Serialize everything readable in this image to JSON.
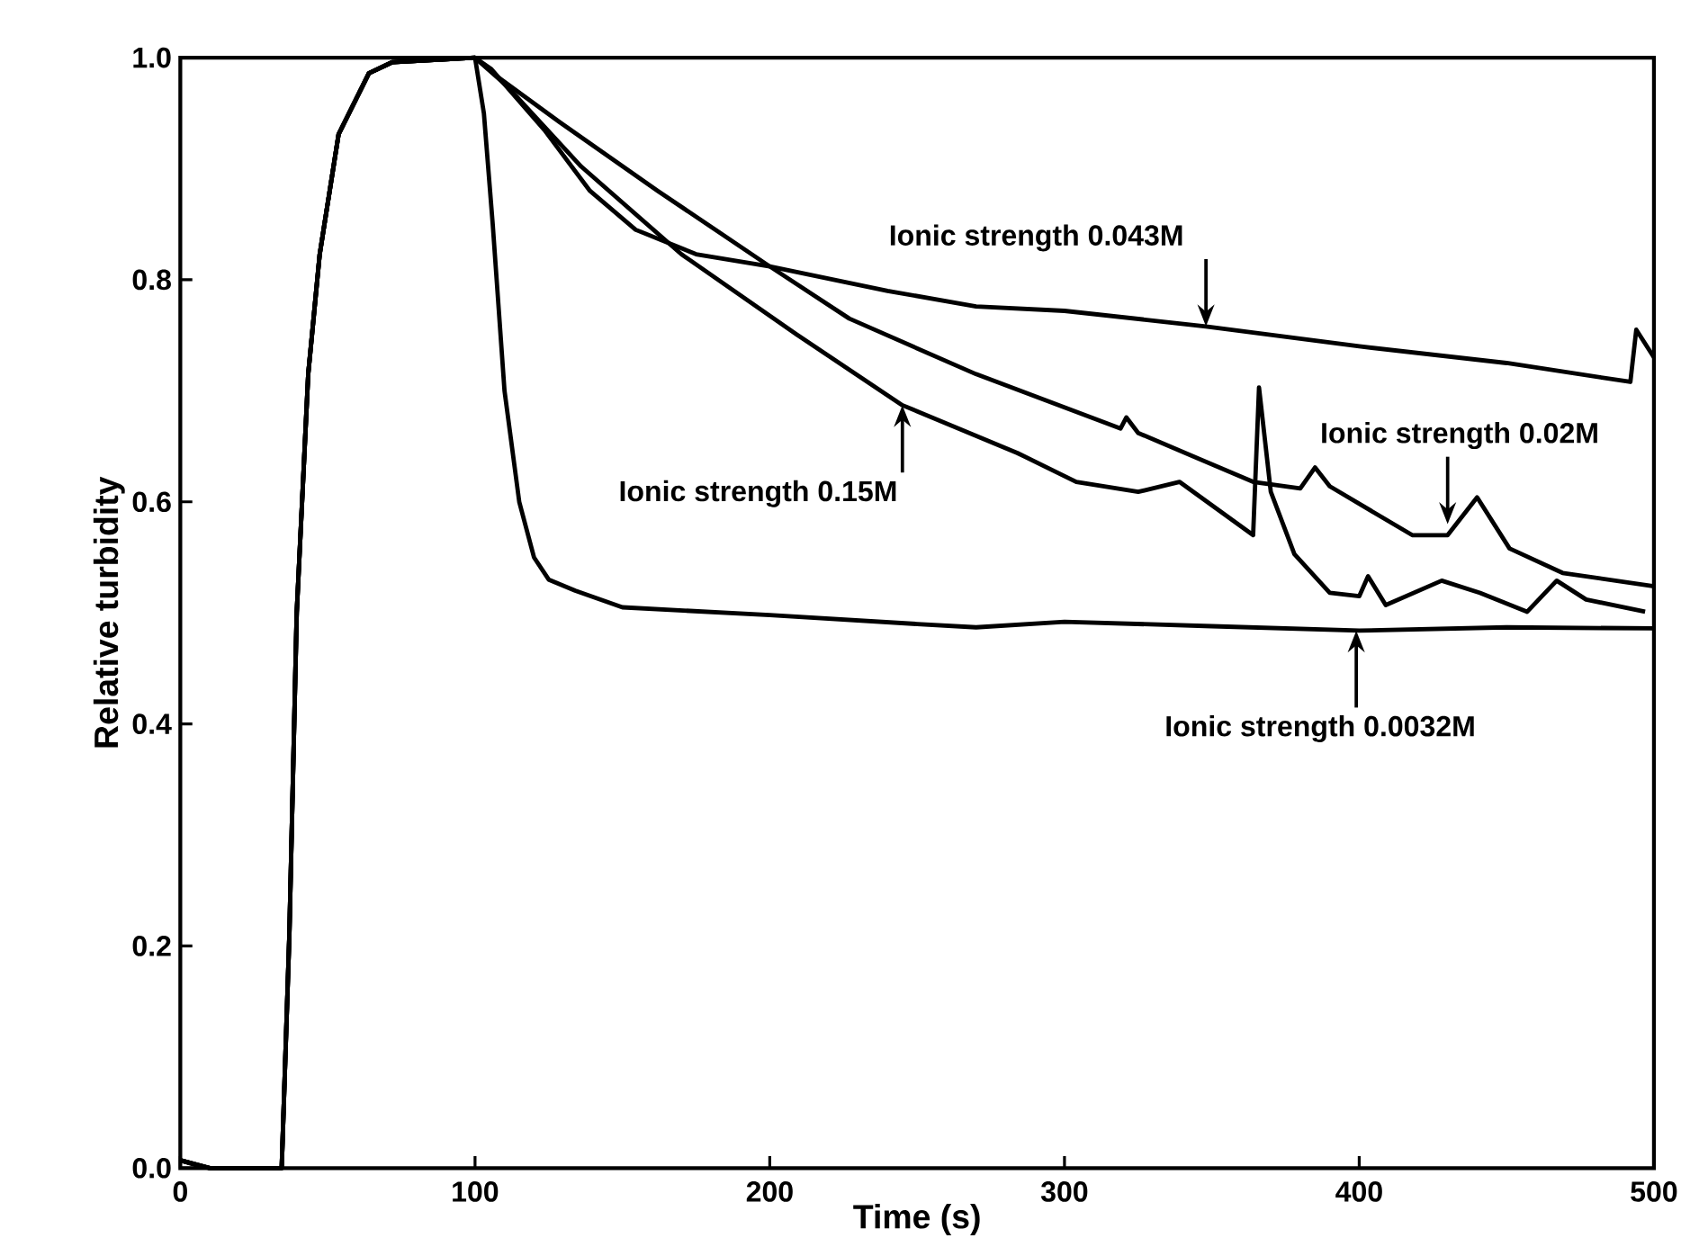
{
  "chart_data": {
    "type": "line",
    "xlabel": "Time (s)",
    "ylabel": "Relative turbidity",
    "xlim": [
      0,
      500
    ],
    "xticks": [
      0,
      100,
      200,
      300,
      400,
      500
    ],
    "ylim": [
      0,
      1
    ],
    "yticks": [
      {
        "value": 0,
        "label": "0.0"
      },
      {
        "value": 0.2,
        "label": "0.2"
      },
      {
        "value": 0.4,
        "label": "0.4"
      },
      {
        "value": 0.6,
        "label": "0.6"
      },
      {
        "value": 0.8,
        "label": "0.8"
      },
      {
        "value": 1,
        "label": "1.0"
      }
    ],
    "grid": false,
    "marker": "none",
    "line_style": "solid",
    "series": [
      {
        "color": "#000000",
        "x": [
          0,
          5,
          10,
          34.4,
          37,
          39.5,
          43.4,
          47.3,
          53.7,
          64,
          72,
          100,
          103,
          106,
          110,
          115,
          120,
          125,
          134,
          150,
          200,
          250,
          270,
          300,
          350,
          400,
          450,
          500
        ],
        "values": [
          0.007,
          0.003,
          0,
          0,
          0.21,
          0.5,
          0.715,
          0.823,
          0.931,
          0.986,
          0.996,
          1,
          0.95,
          0.85,
          0.7,
          0.6,
          0.55,
          0.53,
          0.52,
          0.505,
          0.498,
          0.49,
          0.487,
          0.492,
          0.488,
          0.484,
          0.487,
          0.486
        ]
      },
      {
        "color": "#000000",
        "x": [
          0,
          10,
          34.4,
          37,
          39.5,
          43.4,
          47.3,
          53.7,
          64,
          72,
          100,
          105.4,
          123.5,
          139,
          154.5,
          175,
          200,
          240,
          270,
          300,
          348,
          400,
          450,
          492,
          494,
          500
        ],
        "values": [
          0.007,
          0,
          0,
          0.21,
          0.5,
          0.715,
          0.823,
          0.931,
          0.986,
          0.996,
          1,
          0.99,
          0.935,
          0.88,
          0.845,
          0.823,
          0.812,
          0.79,
          0.776,
          0.772,
          0.758,
          0.74,
          0.725,
          0.708,
          0.755,
          0.73
        ]
      },
      {
        "color": "#000000",
        "x": [
          0,
          10,
          34.4,
          37,
          39.5,
          43.4,
          47.3,
          53.7,
          64,
          72,
          100,
          108,
          128.7,
          162,
          200,
          227,
          270,
          319,
          321,
          325,
          364,
          380,
          385,
          390,
          418,
          430,
          440,
          451,
          469,
          500
        ],
        "values": [
          0.007,
          0,
          0,
          0.21,
          0.5,
          0.715,
          0.823,
          0.931,
          0.986,
          0.996,
          1,
          0.982,
          0.942,
          0.88,
          0.812,
          0.765,
          0.715,
          0.666,
          0.676,
          0.662,
          0.618,
          0.612,
          0.631,
          0.614,
          0.57,
          0.57,
          0.604,
          0.558,
          0.536,
          0.524
        ]
      },
      {
        "color": "#000000",
        "x": [
          0,
          10,
          34.4,
          37,
          39.5,
          43.4,
          47.3,
          53.7,
          64,
          72,
          100,
          110.6,
          136,
          170,
          209,
          245,
          284,
          304,
          325,
          339,
          364,
          366,
          370,
          378,
          390,
          400,
          403,
          409,
          428,
          441,
          457,
          467,
          477,
          497
        ],
        "values": [
          0.007,
          0,
          0,
          0.21,
          0.5,
          0.715,
          0.823,
          0.931,
          0.986,
          0.996,
          1,
          0.975,
          0.902,
          0.823,
          0.751,
          0.687,
          0.644,
          0.618,
          0.609,
          0.618,
          0.57,
          0.703,
          0.609,
          0.553,
          0.518,
          0.515,
          0.533,
          0.507,
          0.529,
          0.518,
          0.501,
          0.529,
          0.512,
          0.501
        ]
      }
    ],
    "annotations": [
      {
        "text": "Ionic strength 0.043M",
        "x": 348,
        "y": 0.758
      },
      {
        "text": "Ionic strength 0.15M",
        "x": 245,
        "y": 0.687
      },
      {
        "text": "Ionic strength 0.02M",
        "x": 430,
        "y": 0.58
      },
      {
        "text": "Ionic strength 0.0032M",
        "x": 399,
        "y": 0.484
      }
    ]
  }
}
